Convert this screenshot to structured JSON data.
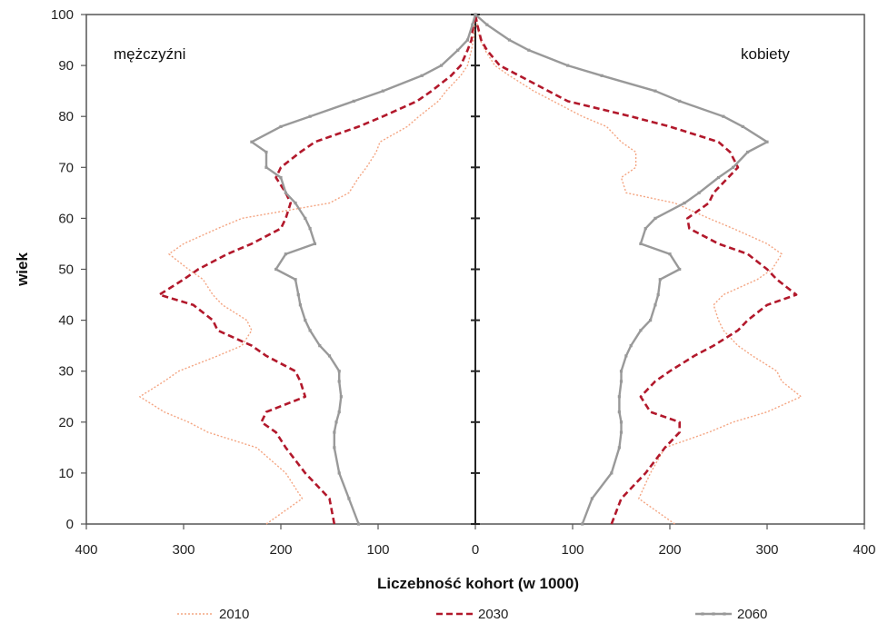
{
  "chart_data": {
    "type": "line",
    "title": "",
    "xlabel": "Liczebność kohort (w 1000)",
    "ylabel": "wiek",
    "xlim": [
      -400,
      400
    ],
    "ylim": [
      0,
      100
    ],
    "x_ticks": [
      -400,
      -300,
      -200,
      -100,
      0,
      100,
      200,
      300,
      400
    ],
    "x_tick_labels": [
      "400",
      "300",
      "200",
      "100",
      "0",
      "100",
      "200",
      "300",
      "400"
    ],
    "y_ticks": [
      0,
      10,
      20,
      30,
      40,
      50,
      60,
      70,
      80,
      90,
      100
    ],
    "y_tick_labels": [
      "0",
      "10",
      "20",
      "30",
      "40",
      "50",
      "60",
      "70",
      "80",
      "90",
      "100"
    ],
    "grid": false,
    "legend_position": "bottom",
    "annotations": [
      {
        "text": "mężczyźni",
        "side": "left"
      },
      {
        "text": "kobiety",
        "side": "right"
      }
    ],
    "ages": [
      0,
      5,
      10,
      15,
      18,
      20,
      22,
      25,
      28,
      30,
      33,
      35,
      38,
      40,
      43,
      45,
      48,
      50,
      53,
      55,
      58,
      60,
      63,
      65,
      68,
      70,
      73,
      75,
      78,
      80,
      83,
      85,
      88,
      90,
      93,
      95,
      98,
      100
    ],
    "series": [
      {
        "name": "2010",
        "color": "#f4a582",
        "dash": "2,2",
        "men": [
          215,
          178,
          195,
          225,
          275,
          295,
          320,
          345,
          320,
          305,
          265,
          240,
          230,
          235,
          260,
          270,
          280,
          295,
          315,
          300,
          265,
          240,
          150,
          130,
          120,
          112,
          102,
          98,
          70,
          58,
          38,
          30,
          15,
          8,
          4,
          2,
          1,
          0
        ],
        "women": [
          205,
          168,
          180,
          195,
          240,
          265,
          300,
          335,
          315,
          310,
          285,
          270,
          255,
          250,
          245,
          255,
          290,
          305,
          315,
          300,
          265,
          240,
          205,
          155,
          150,
          165,
          165,
          150,
          135,
          110,
          80,
          60,
          35,
          20,
          10,
          5,
          2,
          0
        ]
      },
      {
        "name": "2030",
        "color": "#b2182b",
        "dash": "7,4",
        "men": [
          145,
          150,
          175,
          195,
          205,
          220,
          215,
          175,
          180,
          185,
          215,
          230,
          265,
          270,
          290,
          325,
          300,
          285,
          255,
          230,
          200,
          195,
          190,
          195,
          205,
          200,
          180,
          165,
          120,
          95,
          60,
          45,
          25,
          15,
          8,
          4,
          2,
          0
        ],
        "women": [
          140,
          150,
          175,
          195,
          210,
          210,
          180,
          170,
          185,
          200,
          225,
          245,
          270,
          280,
          300,
          330,
          310,
          300,
          280,
          250,
          220,
          218,
          240,
          245,
          260,
          270,
          262,
          250,
          200,
          160,
          95,
          75,
          45,
          25,
          12,
          6,
          2,
          0
        ]
      },
      {
        "name": "2060",
        "color": "#999999",
        "dash": "",
        "men": [
          120,
          130,
          140,
          145,
          145,
          143,
          140,
          138,
          140,
          140,
          150,
          160,
          170,
          175,
          180,
          182,
          185,
          205,
          195,
          165,
          170,
          175,
          185,
          195,
          200,
          215,
          215,
          230,
          200,
          170,
          125,
          95,
          55,
          35,
          18,
          8,
          3,
          0
        ],
        "women": [
          110,
          120,
          140,
          148,
          150,
          150,
          148,
          148,
          150,
          150,
          155,
          160,
          170,
          180,
          185,
          188,
          190,
          210,
          200,
          170,
          175,
          185,
          215,
          230,
          250,
          265,
          280,
          300,
          275,
          255,
          210,
          185,
          130,
          95,
          55,
          35,
          12,
          0
        ]
      }
    ]
  }
}
